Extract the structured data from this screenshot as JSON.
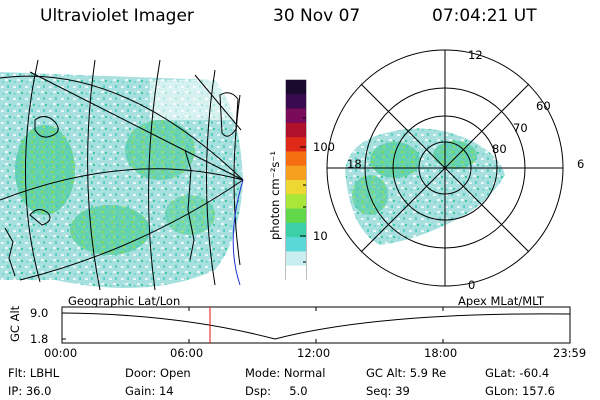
{
  "header": {
    "title": "Ultraviolet Imager",
    "date": "30 Nov 07",
    "time": "07:04:21 UT"
  },
  "colorbar": {
    "unit_label": "photon cm⁻²s⁻¹",
    "tick_labels": [
      "100",
      "10"
    ],
    "colors": [
      "#1a0a2e",
      "#3a0a50",
      "#7a0a5a",
      "#b0102a",
      "#e02a18",
      "#f56f10",
      "#f7a020",
      "#ecd830",
      "#a8e63a",
      "#60d84a",
      "#3cd0a8",
      "#5ad8d8",
      "#c8eef0",
      "#ffffff"
    ]
  },
  "polar_plot": {
    "mlt_labels": [
      "12",
      "18",
      "6",
      "0"
    ],
    "lat_labels": [
      "60",
      "70",
      "80"
    ]
  },
  "timeline": {
    "left_label": "Geographic Lat/Lon",
    "right_label": "Apex MLat/MLT",
    "axis_title": "GC Alt",
    "y_ticks": [
      "9.0",
      "1.8"
    ],
    "x_ticks": [
      "00:00",
      "06:00",
      "12:00",
      "18:00",
      "23:59"
    ],
    "marker_color": "#e01010"
  },
  "info": {
    "row1": {
      "filter": "Flt: LBHL",
      "door": "Door: Open",
      "mode": "Mode: Normal",
      "gc_alt": "GC Alt: 5.9 Re",
      "glat": "GLat: -60.4"
    },
    "row2": {
      "ip": "IP: 36.0",
      "gain": "Gain: 14",
      "dsp": "Dsp:     5.0",
      "seq": "Seq: 39",
      "glon": "GLon: 157.6"
    }
  }
}
